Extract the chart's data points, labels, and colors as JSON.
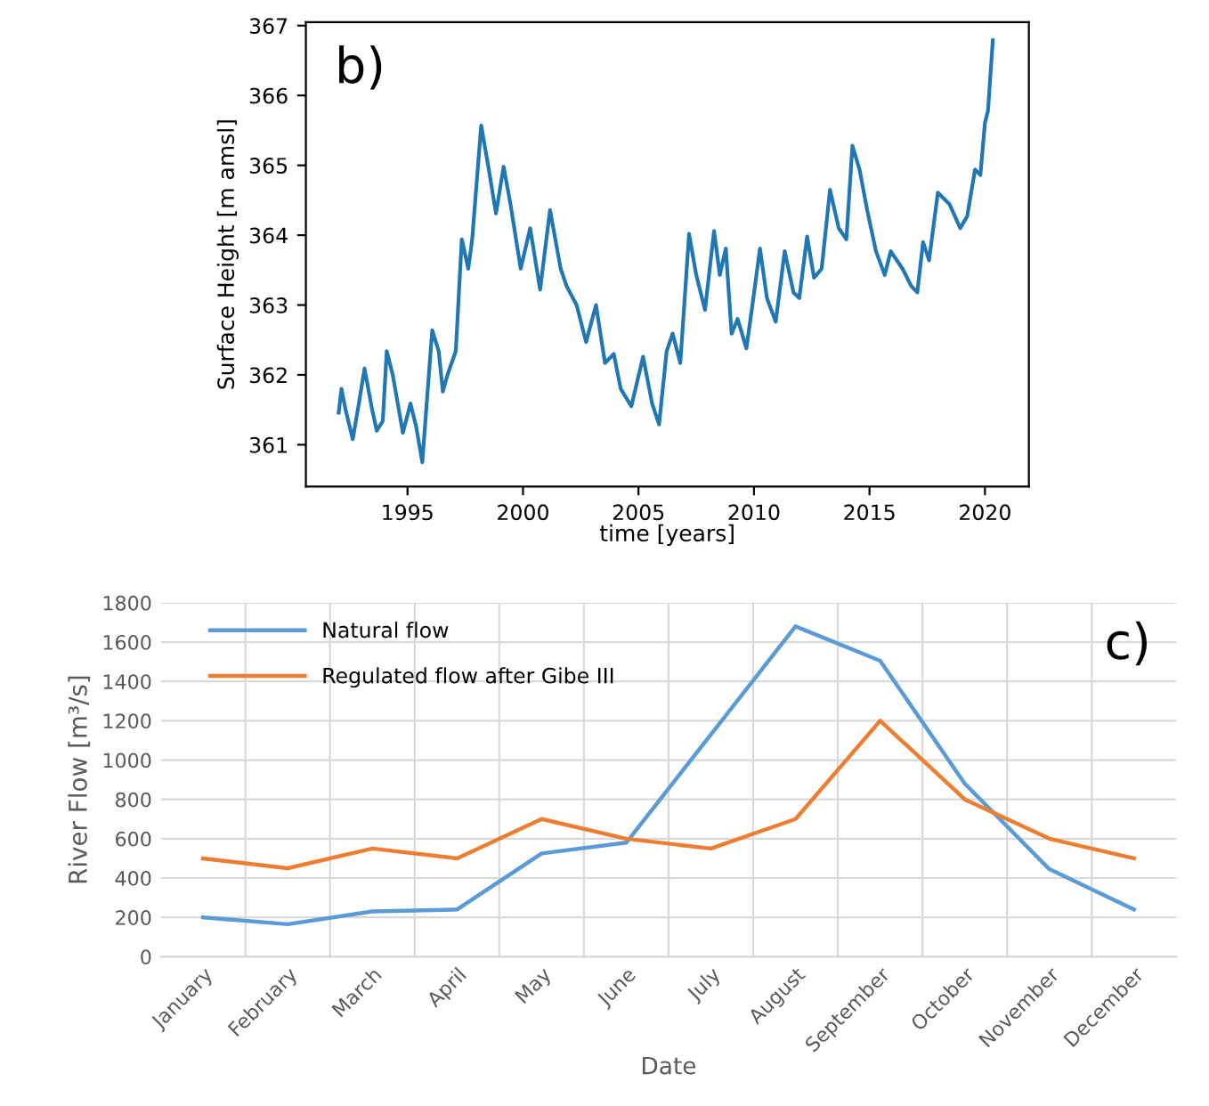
{
  "chart_data": [
    {
      "type": "line",
      "xlabel": "time [years]",
      "ylabel": "Surface Height [m amsl]",
      "annotations": [
        "b)"
      ],
      "xlim": [
        1990.6,
        2021.9
      ],
      "ylim": [
        360.4,
        367.05
      ],
      "xticks": [
        1995,
        2000,
        2005,
        2010,
        2015,
        2020
      ],
      "yticks": [
        361,
        362,
        363,
        364,
        365,
        366,
        367
      ],
      "grid": false,
      "legend": false,
      "series": [
        {
          "color": "#1f77b4",
          "x": [
            1992.02,
            1992.14,
            1992.32,
            1992.63,
            1992.9,
            1993.14,
            1993.47,
            1993.67,
            1993.93,
            1994.1,
            1994.36,
            1994.8,
            1995.13,
            1995.38,
            1995.64,
            1996.07,
            1996.35,
            1996.53,
            1996.73,
            1997.09,
            1997.35,
            1997.63,
            1997.8,
            1998.19,
            1998.52,
            1998.83,
            1999.16,
            1999.46,
            1999.9,
            2000.31,
            2000.74,
            2001.17,
            2001.63,
            2001.89,
            2002.32,
            2002.73,
            2003.16,
            2003.55,
            2003.93,
            2004.23,
            2004.69,
            2005.2,
            2005.59,
            2005.89,
            2006.22,
            2006.48,
            2006.81,
            2007.19,
            2007.5,
            2007.88,
            2008.27,
            2008.52,
            2008.78,
            2009.03,
            2009.29,
            2009.67,
            2009.92,
            2010.26,
            2010.56,
            2010.94,
            2011.33,
            2011.71,
            2011.96,
            2012.3,
            2012.6,
            2012.93,
            2013.29,
            2013.67,
            2014.0,
            2014.26,
            2014.57,
            2014.9,
            2015.28,
            2015.66,
            2015.92,
            2016.43,
            2016.81,
            2017.07,
            2017.32,
            2017.58,
            2017.96,
            2018.47,
            2018.93,
            2019.23,
            2019.57,
            2019.8,
            2020.0,
            2020.13,
            2020.34
          ],
          "values": [
            361.46,
            361.8,
            361.5,
            361.08,
            361.6,
            362.09,
            361.5,
            361.2,
            361.34,
            362.34,
            362.0,
            361.17,
            361.59,
            361.25,
            360.75,
            362.64,
            362.34,
            361.76,
            362.0,
            362.34,
            363.94,
            363.52,
            363.94,
            365.57,
            364.94,
            364.31,
            364.98,
            364.44,
            363.52,
            364.1,
            363.22,
            364.36,
            363.52,
            363.27,
            363.0,
            362.47,
            363.0,
            362.17,
            362.3,
            361.8,
            361.55,
            362.26,
            361.59,
            361.29,
            362.34,
            362.59,
            362.17,
            364.02,
            363.43,
            362.93,
            364.06,
            363.43,
            363.81,
            362.59,
            362.8,
            362.38,
            362.97,
            363.81,
            363.1,
            362.76,
            363.77,
            363.18,
            363.1,
            363.98,
            363.39,
            363.52,
            364.65,
            364.1,
            363.94,
            365.28,
            364.94,
            364.36,
            363.77,
            363.43,
            363.77,
            363.52,
            363.27,
            363.18,
            363.9,
            363.64,
            364.61,
            364.44,
            364.1,
            364.27,
            364.94,
            364.86,
            365.61,
            365.78,
            366.79
          ]
        }
      ]
    },
    {
      "type": "line",
      "xlabel": "Date",
      "ylabel": "River Flow [m³/s]",
      "annotations": [
        "c)"
      ],
      "categories": [
        "January",
        "February",
        "March",
        "April",
        "May",
        "June",
        "July",
        "August",
        "September",
        "October",
        "November",
        "December"
      ],
      "ylim": [
        0,
        1800
      ],
      "yticks": [
        0,
        200,
        400,
        600,
        800,
        1000,
        1200,
        1400,
        1600,
        1800
      ],
      "grid": true,
      "legend": "top left",
      "series": [
        {
          "name": "Natural flow",
          "color": "#5b9bd5",
          "values": [
            200,
            165,
            230,
            240,
            525,
            580,
            1130,
            1680,
            1505,
            880,
            445,
            240
          ]
        },
        {
          "name": "Regulated flow after Gibe III",
          "color": "#ed7d31",
          "values": [
            500,
            450,
            550,
            500,
            700,
            600,
            550,
            700,
            1200,
            800,
            600,
            500
          ]
        }
      ]
    }
  ]
}
